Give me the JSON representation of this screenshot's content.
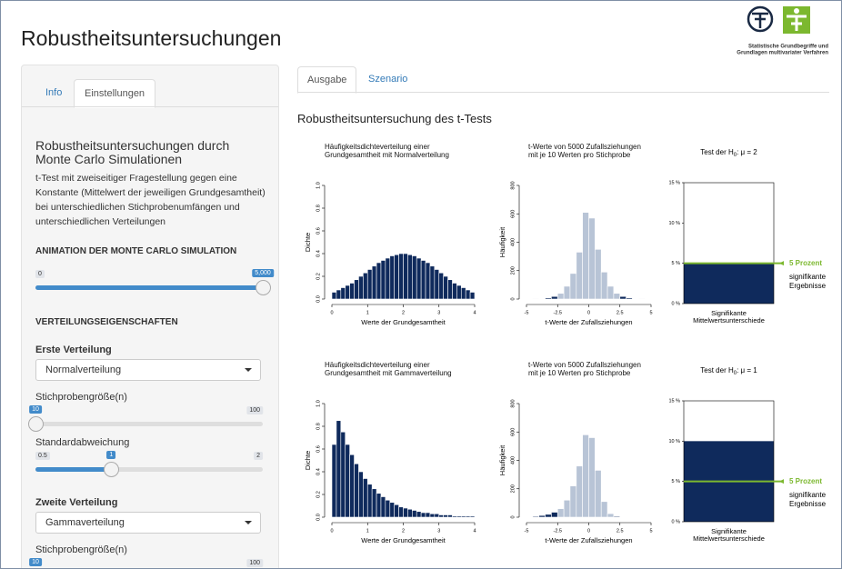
{
  "header": {
    "title": "Robustheitsuntersuchungen",
    "logo_text": [
      "Statistische Grundbegriffe und",
      "Grundlagen multivariater Verfahren"
    ]
  },
  "sidebar": {
    "tabs": [
      "Info",
      "Einstellungen"
    ],
    "active_tab": 1,
    "heading": "Robustheitsuntersuchungen durch Monte Carlo Simulationen",
    "description": "t-Test mit zweiseitiger Fragestellung gegen eine Konstante (Mittelwert der jeweiligen Grundgesamtheit) bei unterschiedlichen Stichprobenumfängen und unterschiedlichen Verteilungen",
    "animation": {
      "label": "ANIMATION DER MONTE CARLO SIMULATION",
      "slider": {
        "min": 0,
        "value": {
          "value": 5000,
          "label": "5,000"
        }
      }
    },
    "section": "VERTEILUNGSEIGENSCHAFTEN",
    "distributions": [
      {
        "label": "Erste Verteilung",
        "select": "Normalverteilung",
        "sliders": [
          {
            "label": "Stichprobengröße(n)",
            "max": 100,
            "value": 10
          },
          {
            "label": "Standardabweichung",
            "min": 0.5,
            "max": 2,
            "value": 1
          }
        ]
      },
      {
        "label": "Zweite Verteilung",
        "select": "Gammaverteilung",
        "sliders": [
          {
            "label": "Stichprobengröße(n)",
            "max": 100,
            "value": 10
          }
        ]
      }
    ]
  },
  "main": {
    "tabs": [
      "Ausgabe",
      "Szenario"
    ],
    "active_tab": 0,
    "heading": "Robustheitsuntersuchung des t-Tests",
    "rows": [
      [
        {
          "type": "histogram",
          "title": [
            "Häufigkeitsdichteverteilung einer",
            "Grundgesamtheit mit Normalverteilung"
          ],
          "xlabel": "Werte der Grundgesamtheit",
          "ylabel": "Dichte",
          "color": "#0f2a5c",
          "bins": [
            0,
            0.125,
            0.25,
            0.375,
            0.5,
            0.625,
            0.75,
            0.875,
            1,
            1.125,
            1.25,
            1.375,
            1.5,
            1.625,
            1.75,
            1.875,
            2,
            2.125,
            2.25,
            2.375,
            2.5,
            2.625,
            2.75,
            2.875,
            3,
            3.125,
            3.25,
            3.375,
            3.5,
            3.625,
            3.75,
            3.875,
            4
          ],
          "values": [
            0.06,
            0.08,
            0.1,
            0.12,
            0.14,
            0.17,
            0.2,
            0.23,
            0.26,
            0.29,
            0.32,
            0.34,
            0.36,
            0.38,
            0.39,
            0.4,
            0.4,
            0.39,
            0.38,
            0.36,
            0.34,
            0.32,
            0.29,
            0.26,
            0.23,
            0.2,
            0.17,
            0.14,
            0.12,
            0.1,
            0.08,
            0.06
          ],
          "xlim": [
            0,
            4
          ],
          "xticks": [
            0,
            1,
            2,
            3,
            4
          ],
          "ylim": [
            0,
            1
          ],
          "yticks": [
            {
              "value": 0,
              "label": "0.0"
            },
            0.2,
            0.4,
            0.6,
            0.8,
            {
              "value": 1,
              "label": "1.0"
            }
          ]
        },
        {
          "type": "histogram",
          "title": [
            "t-Werte von 5000 Zufallsziehungen",
            "mit je 10 Werten pro Stichprobe"
          ],
          "xlabel": "t-Werte der Zufallsziehungen",
          "ylabel": "Häufigkeit",
          "color": "#b8c4d6",
          "bins": [
            -5,
            -4.5,
            -4,
            -3.5,
            -3,
            -2.5,
            -2,
            -1.5,
            -1,
            -0.5,
            0,
            0.5,
            1,
            1.5,
            2,
            2.5,
            3,
            3.5,
            4,
            4.5,
            5
          ],
          "values": [
            0,
            1,
            3,
            8,
            18,
            40,
            90,
            180,
            330,
            610,
            570,
            350,
            190,
            90,
            40,
            18,
            8,
            3,
            1,
            0
          ],
          "colors": [
            "#0f2a5c",
            "#0f2a5c",
            "#0f2a5c",
            "#0f2a5c",
            "#0f2a5c",
            "#b8c4d6",
            "#b8c4d6",
            "#b8c4d6",
            "#b8c4d6",
            "#b8c4d6",
            "#b8c4d6",
            "#b8c4d6",
            "#b8c4d6",
            "#b8c4d6",
            "#b8c4d6",
            "#0f2a5c",
            "#0f2a5c",
            "#0f2a5c",
            "#0f2a5c",
            "#0f2a5c"
          ],
          "xlim": [
            -5,
            5
          ],
          "xticks": [
            -5,
            -2.5,
            0,
            2.5,
            5
          ],
          "ylim": [
            0,
            800
          ],
          "yticks": [
            0,
            200,
            400,
            600,
            800
          ]
        },
        {
          "type": "bar",
          "title": [
            "Test der H",
            "0",
            ": μ = 2"
          ],
          "xlabel": [
            "Signifikante",
            "Mittelwertsunterschiede"
          ],
          "values": [
            5
          ],
          "color": "#0f2a5c",
          "reference": 5,
          "reference_label": "5 Prozent",
          "reference_color": "#7cb82f",
          "annotation": [
            "signifikante",
            "Ergebnisse"
          ],
          "ylim": [
            0,
            15
          ],
          "yticks": [
            {
              "value": 0,
              "label": "0 %"
            },
            {
              "value": 5,
              "label": "5 %"
            },
            {
              "value": 10,
              "label": "10 %"
            },
            {
              "value": 15,
              "label": "15 %"
            }
          ]
        }
      ],
      [
        {
          "type": "histogram",
          "title": [
            "Häufigkeitsdichteverteilung einer",
            "Grundgesamtheit mit Gammaverteilung"
          ],
          "xlabel": "Werte der Grundgesamtheit",
          "ylabel": "Dichte",
          "color": "#0f2a5c",
          "bins": [
            0,
            0.125,
            0.25,
            0.375,
            0.5,
            0.625,
            0.75,
            0.875,
            1,
            1.125,
            1.25,
            1.375,
            1.5,
            1.625,
            1.75,
            1.875,
            2,
            2.125,
            2.25,
            2.375,
            2.5,
            2.625,
            2.75,
            2.875,
            3,
            3.125,
            3.25,
            3.375,
            3.5,
            3.625,
            3.75,
            3.875,
            4
          ],
          "values": [
            0.64,
            0.85,
            0.75,
            0.64,
            0.55,
            0.47,
            0.4,
            0.34,
            0.29,
            0.25,
            0.21,
            0.18,
            0.15,
            0.13,
            0.11,
            0.09,
            0.08,
            0.07,
            0.06,
            0.05,
            0.04,
            0.04,
            0.03,
            0.03,
            0.02,
            0.02,
            0.02,
            0.01,
            0.01,
            0.01,
            0.01,
            0.01
          ],
          "xlim": [
            0,
            4
          ],
          "xticks": [
            0,
            1,
            2,
            3,
            4
          ],
          "ylim": [
            0,
            1
          ],
          "yticks": [
            {
              "value": 0,
              "label": "0.0"
            },
            0.2,
            0.4,
            0.6,
            0.8,
            {
              "value": 1,
              "label": "1.0"
            }
          ]
        },
        {
          "type": "histogram",
          "title": [
            "t-Werte von 5000 Zufallsziehungen",
            "mit je 10 Werten pro Stichprobe"
          ],
          "xlabel": "t-Werte der Zufallsziehungen",
          "ylabel": "Häufigkeit",
          "color": "#b8c4d6",
          "bins": [
            -5,
            -4.5,
            -4,
            -3.5,
            -3,
            -2.5,
            -2,
            -1.5,
            -1,
            -0.5,
            0,
            0.5,
            1,
            1.5,
            2,
            2.5,
            3,
            3.5,
            4,
            4.5,
            5
          ],
          "values": [
            3,
            6,
            12,
            20,
            35,
            60,
            120,
            220,
            360,
            580,
            560,
            330,
            110,
            25,
            6,
            0,
            0,
            0,
            0,
            0
          ],
          "colors": [
            "#0f2a5c",
            "#0f2a5c",
            "#0f2a5c",
            "#0f2a5c",
            "#0f2a5c",
            "#b8c4d6",
            "#b8c4d6",
            "#b8c4d6",
            "#b8c4d6",
            "#b8c4d6",
            "#b8c4d6",
            "#b8c4d6",
            "#b8c4d6",
            "#b8c4d6",
            "#0f2a5c",
            "#0f2a5c",
            "#0f2a5c",
            "#0f2a5c",
            "#0f2a5c",
            "#0f2a5c"
          ],
          "xlim": [
            -5,
            5
          ],
          "xticks": [
            -5,
            -2.5,
            0,
            2.5,
            5
          ],
          "ylim": [
            0,
            800
          ],
          "yticks": [
            0,
            200,
            400,
            600,
            800
          ]
        },
        {
          "type": "bar",
          "title": [
            "Test der H",
            "0",
            ": μ = 1"
          ],
          "xlabel": [
            "Signifikante",
            "Mittelwertsunterschiede"
          ],
          "values": [
            10
          ],
          "color": "#0f2a5c",
          "reference": 5,
          "reference_label": "5 Prozent",
          "reference_color": "#7cb82f",
          "annotation": [
            "signifikante",
            "Ergebnisse"
          ],
          "ylim": [
            0,
            15
          ],
          "yticks": [
            {
              "value": 0,
              "label": "0 %"
            },
            {
              "value": 5,
              "label": "5 %"
            },
            {
              "value": 10,
              "label": "10 %"
            },
            {
              "value": 15,
              "label": "15 %"
            }
          ]
        }
      ]
    ]
  }
}
